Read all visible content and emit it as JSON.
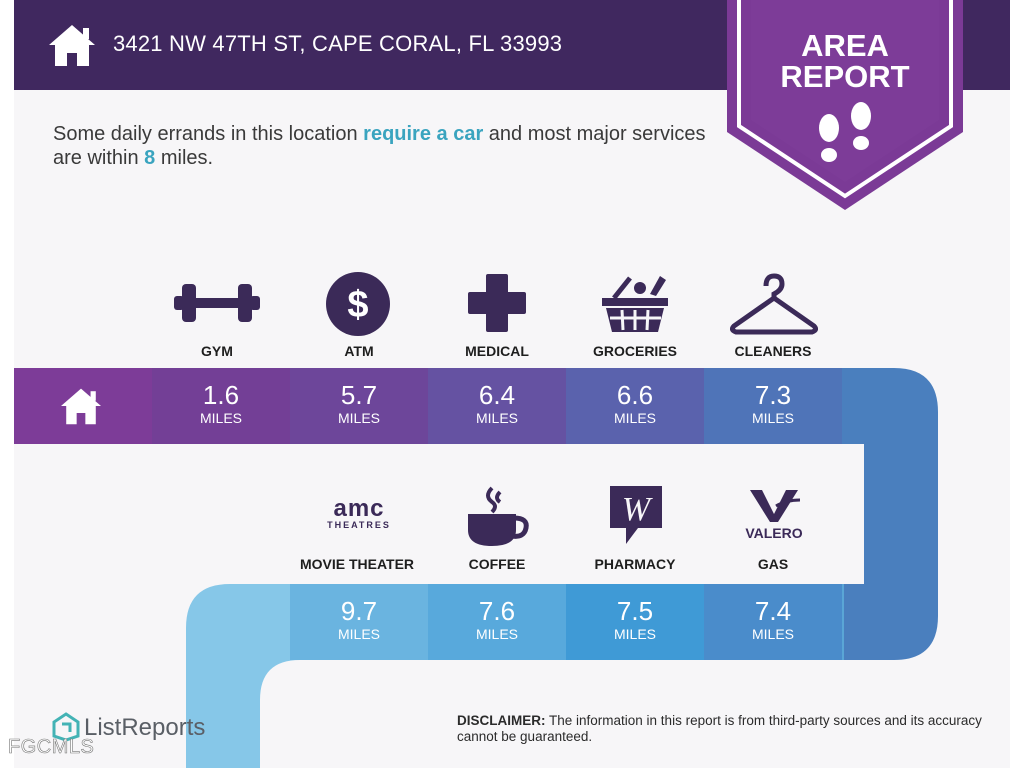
{
  "header": {
    "address": "3421 NW 47TH ST, CAPE CORAL, FL 33993",
    "badge_line1": "AREA",
    "badge_line2": "REPORT"
  },
  "intro": {
    "part1": "Some daily errands in this location ",
    "highlight1": "require a car",
    "part2": " and most major services are within ",
    "highlight2": "8",
    "part3": " miles."
  },
  "row1": [
    {
      "label": "GYM",
      "icon": "dumbbell-icon",
      "distance": "1.6",
      "unit": "MILES"
    },
    {
      "label": "ATM",
      "icon": "dollar-icon",
      "distance": "5.7",
      "unit": "MILES"
    },
    {
      "label": "MEDICAL",
      "icon": "medical-cross-icon",
      "distance": "6.4",
      "unit": "MILES"
    },
    {
      "label": "GROCERIES",
      "icon": "grocery-basket-icon",
      "distance": "6.6",
      "unit": "MILES"
    },
    {
      "label": "CLEANERS",
      "icon": "hanger-icon",
      "distance": "7.3",
      "unit": "MILES"
    }
  ],
  "row2": [
    {
      "label": "MOVIE THEATER",
      "icon": "amc-theatres-logo",
      "logo_text1": "amc",
      "logo_text2": "THEATRES",
      "distance": "9.7",
      "unit": "MILES"
    },
    {
      "label": "COFFEE",
      "icon": "coffee-cup-icon",
      "distance": "7.6",
      "unit": "MILES"
    },
    {
      "label": "PHARMACY",
      "icon": "walgreens-logo",
      "distance": "7.5",
      "unit": "MILES"
    },
    {
      "label": "GAS",
      "icon": "valero-logo",
      "logo_text": "VALERO",
      "distance": "7.4",
      "unit": "MILES"
    }
  ],
  "footer": {
    "brand": "ListReports",
    "disclaimer_label": "DISCLAIMER:",
    "disclaimer_text": " The information in this report is from third-party sources and its accuracy cannot be guaranteed.",
    "watermark": "FGCMLS"
  },
  "colors": {
    "header_bg": "#40285f",
    "badge_purple": "#7b3a96",
    "highlight": "#3aa4bf",
    "page_bg": "#f7f6f8"
  }
}
